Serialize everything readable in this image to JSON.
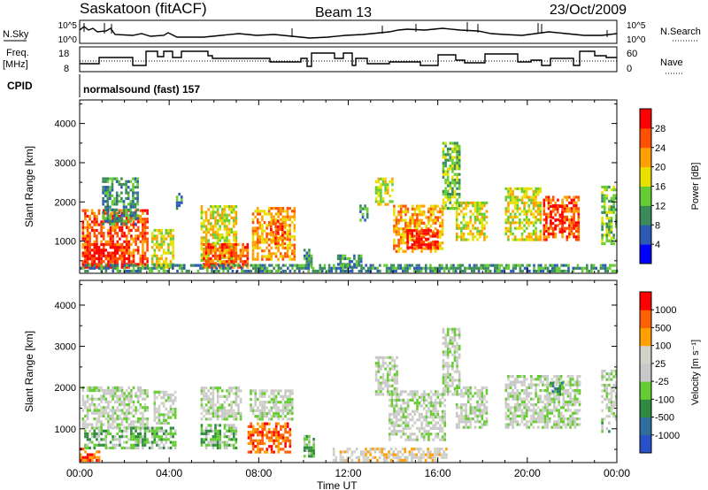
{
  "header": {
    "station": "Saskatoon (fitACF)",
    "beam": "Beam 13",
    "date": "23/Oct/2009"
  },
  "strip_labels": {
    "nsky": "N.Sky",
    "nsearch": "N.Search",
    "freq_line1": "Freq.",
    "freq_line2": "[MHz]",
    "nave": "Nave",
    "cpid": "CPID",
    "cpid_value": "normalsound (fast) 157",
    "noise_ticks_left": [
      "10^5",
      "10^0"
    ],
    "noise_ticks_right": [
      "10^5",
      "10^0"
    ],
    "freq_ticks_left": [
      "18",
      "8"
    ],
    "nave_ticks_right": [
      "60",
      "0"
    ]
  },
  "chart_data": [
    {
      "type": "heatmap",
      "name": "Power",
      "xlabel": "Time UT",
      "ylabel": "Slant Range [km]",
      "x_ticks": [
        "00:00",
        "04:00",
        "08:00",
        "12:00",
        "16:00",
        "20:00",
        "00:00"
      ],
      "y_ticks": [
        "1000",
        "2000",
        "3000",
        "4000"
      ],
      "x_range_hours": [
        0,
        24
      ],
      "y_range_km": [
        180,
        4600
      ],
      "colorbar": {
        "title": "Power [dB]",
        "ticks": [
          "4",
          "8",
          "12",
          "16",
          "20",
          "24",
          "28"
        ],
        "colors": [
          "#0000ff",
          "#2a5ab4",
          "#3a8a5a",
          "#66cc33",
          "#e8e000",
          "#ffa000",
          "#ff5000",
          "#ff0000"
        ]
      },
      "regions": [
        {
          "t0": 0.1,
          "t1": 3.0,
          "r0": 300,
          "r1": 1800,
          "level": 6
        },
        {
          "t0": 0.2,
          "t1": 2.2,
          "r0": 300,
          "r1": 900,
          "level": 7
        },
        {
          "t0": 1.0,
          "t1": 2.6,
          "r0": 1400,
          "r1": 2600,
          "level": 2
        },
        {
          "t0": 3.2,
          "t1": 4.2,
          "r0": 300,
          "r1": 1300,
          "level": 4
        },
        {
          "t0": 4.3,
          "t1": 4.6,
          "r0": 1800,
          "r1": 2300,
          "level": 2
        },
        {
          "t0": 5.4,
          "t1": 7.0,
          "r0": 400,
          "r1": 1900,
          "level": 4
        },
        {
          "t0": 5.5,
          "t1": 7.5,
          "r0": 300,
          "r1": 900,
          "level": 6
        },
        {
          "t0": 7.7,
          "t1": 9.6,
          "r0": 500,
          "r1": 1800,
          "level": 5
        },
        {
          "t0": 8.5,
          "t1": 9.2,
          "r0": 900,
          "r1": 1500,
          "level": 6
        },
        {
          "t0": 10.0,
          "t1": 10.4,
          "r0": 300,
          "r1": 800,
          "level": 2
        },
        {
          "t0": 11.5,
          "t1": 12.6,
          "r0": 300,
          "r1": 600,
          "level": 2
        },
        {
          "t0": 12.5,
          "t1": 12.9,
          "r0": 1500,
          "r1": 1900,
          "level": 2
        },
        {
          "t0": 13.2,
          "t1": 14.0,
          "r0": 1900,
          "r1": 2600,
          "level": 4
        },
        {
          "t0": 14.0,
          "t1": 16.2,
          "r0": 700,
          "r1": 1900,
          "level": 5
        },
        {
          "t0": 14.6,
          "t1": 16.0,
          "r0": 800,
          "r1": 1300,
          "level": 7
        },
        {
          "t0": 16.2,
          "t1": 17.0,
          "r0": 1800,
          "r1": 3500,
          "level": 3
        },
        {
          "t0": 16.8,
          "t1": 18.2,
          "r0": 1000,
          "r1": 2000,
          "level": 4
        },
        {
          "t0": 19.0,
          "t1": 20.6,
          "r0": 1000,
          "r1": 2300,
          "level": 4
        },
        {
          "t0": 20.7,
          "t1": 22.3,
          "r0": 1000,
          "r1": 2100,
          "level": 6
        },
        {
          "t0": 21.0,
          "t1": 21.6,
          "r0": 1200,
          "r1": 1900,
          "level": 7
        },
        {
          "t0": 23.3,
          "t1": 24.0,
          "r0": 900,
          "r1": 2400,
          "level": 3
        },
        {
          "t0": 0.0,
          "t1": 24.0,
          "r0": 200,
          "r1": 350,
          "level": 2
        }
      ]
    },
    {
      "type": "heatmap",
      "name": "Velocity",
      "xlabel": "Time UT",
      "ylabel": "Slant Range [km]",
      "x_ticks": [
        "00:00",
        "04:00",
        "08:00",
        "12:00",
        "16:00",
        "20:00",
        "00:00"
      ],
      "y_ticks": [
        "1000",
        "2000",
        "3000",
        "4000"
      ],
      "x_range_hours": [
        0,
        24
      ],
      "y_range_km": [
        180,
        4600
      ],
      "colorbar": {
        "title": "Velocity [m s⁻¹]",
        "ticks": [
          "1000",
          "500",
          "100",
          "25",
          "-25",
          "-100",
          "-500",
          "-1000"
        ],
        "colors": [
          "#2850c8",
          "#2f6fa0",
          "#2e8a3e",
          "#66cc33",
          "#c8c8c8",
          "#d2d2c8",
          "#ffa000",
          "#ff6000",
          "#ff0000"
        ]
      },
      "regions": [
        {
          "t0": 0.1,
          "t1": 3.0,
          "r0": 1000,
          "r1": 2000,
          "level": 4
        },
        {
          "t0": 0.2,
          "t1": 3.1,
          "r0": 500,
          "r1": 1000,
          "level": 3
        },
        {
          "t0": 0.0,
          "t1": 0.9,
          "r0": 200,
          "r1": 500,
          "level": 7
        },
        {
          "t0": 3.2,
          "t1": 4.3,
          "r0": 500,
          "r1": 1000,
          "level": 3
        },
        {
          "t0": 3.3,
          "t1": 4.3,
          "r0": 1100,
          "r1": 1900,
          "level": 4
        },
        {
          "t0": 5.4,
          "t1": 7.2,
          "r0": 1200,
          "r1": 2000,
          "level": 4
        },
        {
          "t0": 5.4,
          "t1": 7.0,
          "r0": 500,
          "r1": 1100,
          "level": 3
        },
        {
          "t0": 7.5,
          "t1": 9.4,
          "r0": 400,
          "r1": 1100,
          "level": 7
        },
        {
          "t0": 7.6,
          "t1": 9.5,
          "r0": 1200,
          "r1": 1900,
          "level": 4
        },
        {
          "t0": 10.0,
          "t1": 10.5,
          "r0": 300,
          "r1": 800,
          "level": 3
        },
        {
          "t0": 11.3,
          "t1": 16.4,
          "r0": 200,
          "r1": 500,
          "level": 5
        },
        {
          "t0": 13.8,
          "t1": 16.3,
          "r0": 700,
          "r1": 1900,
          "level": 4
        },
        {
          "t0": 13.2,
          "t1": 14.2,
          "r0": 1800,
          "r1": 2700,
          "level": 4
        },
        {
          "t0": 16.2,
          "t1": 17.0,
          "r0": 1800,
          "r1": 3400,
          "level": 4
        },
        {
          "t0": 16.8,
          "t1": 18.2,
          "r0": 1000,
          "r1": 2000,
          "level": 4
        },
        {
          "t0": 19.0,
          "t1": 22.3,
          "r0": 1000,
          "r1": 2300,
          "level": 4
        },
        {
          "t0": 21.0,
          "t1": 21.6,
          "r0": 1800,
          "r1": 2100,
          "level": 2
        },
        {
          "t0": 23.3,
          "t1": 24.0,
          "r0": 1200,
          "r1": 2400,
          "level": 4
        },
        {
          "t0": 23.3,
          "t1": 23.7,
          "r0": 900,
          "r1": 1200,
          "level": 3
        }
      ]
    }
  ]
}
